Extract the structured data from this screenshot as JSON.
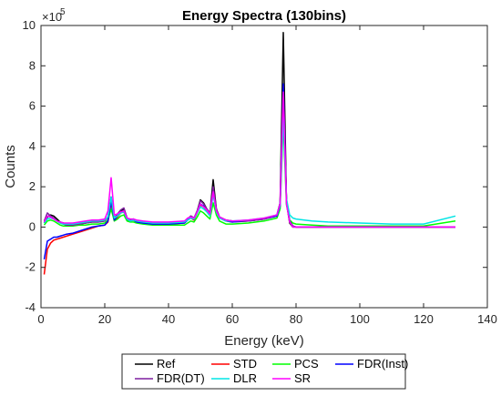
{
  "chart_data": {
    "type": "line",
    "title": "Energy Spectra (130bins)",
    "xlabel": "Energy (keV)",
    "ylabel": "Counts",
    "y_exponent_base": "×10",
    "y_exponent_power": "5",
    "xlim": [
      0,
      140
    ],
    "ylim": [
      -4,
      10
    ],
    "x_ticks": [
      0,
      20,
      40,
      60,
      80,
      100,
      120,
      140
    ],
    "y_ticks": [
      -4,
      -2,
      0,
      2,
      4,
      6,
      8,
      10
    ],
    "grid": false,
    "legend_position": "bottom-outside",
    "legend_columns": 4,
    "series": [
      {
        "name": "Ref",
        "color": "#000000",
        "x": [
          1,
          2,
          3,
          4,
          5,
          6,
          7,
          8,
          10,
          12,
          14,
          16,
          18,
          20,
          21,
          22,
          23,
          24,
          25,
          26,
          27,
          28,
          29,
          30,
          32,
          35,
          40,
          45,
          46,
          47,
          48,
          49,
          50,
          51,
          52,
          53,
          54,
          55,
          56,
          58,
          60,
          65,
          70,
          74,
          75,
          76,
          77,
          78,
          79,
          80,
          85,
          90,
          100,
          110,
          120,
          130
        ],
        "y": [
          0.2,
          0.5,
          0.6,
          0.55,
          0.4,
          0.25,
          0.2,
          0.15,
          0.1,
          0.15,
          0.2,
          0.25,
          0.25,
          0.3,
          0.5,
          1.4,
          0.45,
          0.6,
          0.8,
          0.9,
          0.45,
          0.35,
          0.4,
          0.3,
          0.25,
          0.2,
          0.2,
          0.25,
          0.4,
          0.55,
          0.45,
          0.8,
          1.35,
          1.2,
          0.9,
          0.7,
          2.35,
          0.9,
          0.5,
          0.35,
          0.3,
          0.3,
          0.4,
          0.6,
          1.2,
          9.65,
          1.2,
          0.2,
          0.0,
          0.0,
          0.0,
          0.0,
          0.0,
          0.0,
          0.0,
          0.0
        ]
      },
      {
        "name": "STD",
        "color": "#ff0000",
        "x": [
          1,
          2,
          3,
          4,
          5,
          6,
          7,
          8,
          10,
          12,
          14,
          16,
          18,
          20,
          21,
          22,
          23,
          24,
          25,
          26,
          27,
          28,
          29,
          30,
          32,
          35,
          40,
          45,
          46,
          47,
          48,
          49,
          50,
          51,
          52,
          53,
          54,
          55,
          56,
          58,
          60,
          65,
          70,
          74,
          75,
          76,
          77,
          78,
          79,
          80,
          85,
          90,
          100,
          110,
          120,
          130
        ],
        "y": [
          -2.35,
          -1.1,
          -0.8,
          -0.65,
          -0.6,
          -0.55,
          -0.5,
          -0.45,
          -0.35,
          -0.25,
          -0.15,
          -0.05,
          0.05,
          0.1,
          0.25,
          1.2,
          0.3,
          0.5,
          0.7,
          0.75,
          0.35,
          0.3,
          0.35,
          0.25,
          0.2,
          0.15,
          0.15,
          0.2,
          0.35,
          0.45,
          0.35,
          0.7,
          1.1,
          1.0,
          0.8,
          0.6,
          1.8,
          0.8,
          0.45,
          0.3,
          0.25,
          0.3,
          0.4,
          0.55,
          1.0,
          7.0,
          1.3,
          0.3,
          0.05,
          0.0,
          0.0,
          0.0,
          0.0,
          0.0,
          0.0,
          0.0
        ]
      },
      {
        "name": "PCS",
        "color": "#00ff00",
        "x": [
          1,
          2,
          3,
          4,
          5,
          6,
          7,
          8,
          10,
          12,
          14,
          16,
          18,
          20,
          21,
          22,
          23,
          24,
          25,
          26,
          27,
          28,
          29,
          30,
          32,
          35,
          40,
          45,
          46,
          47,
          48,
          49,
          50,
          51,
          52,
          53,
          54,
          55,
          56,
          58,
          60,
          65,
          70,
          74,
          75,
          76,
          77,
          78,
          79,
          80,
          85,
          90,
          100,
          110,
          120,
          130
        ],
        "y": [
          0.1,
          0.3,
          0.35,
          0.3,
          0.2,
          0.1,
          0.05,
          0.05,
          0.05,
          0.1,
          0.1,
          0.15,
          0.15,
          0.2,
          0.35,
          0.9,
          0.3,
          0.4,
          0.55,
          0.6,
          0.3,
          0.25,
          0.25,
          0.2,
          0.15,
          0.1,
          0.1,
          0.1,
          0.2,
          0.3,
          0.25,
          0.5,
          0.8,
          0.7,
          0.55,
          0.4,
          1.2,
          0.6,
          0.3,
          0.15,
          0.15,
          0.2,
          0.3,
          0.45,
          0.9,
          5.2,
          1.1,
          0.35,
          0.2,
          0.15,
          0.1,
          0.05,
          0.05,
          0.05,
          0.05,
          0.3
        ]
      },
      {
        "name": "FDR(Inst)",
        "color": "#0000ff",
        "x": [
          1,
          2,
          3,
          4,
          5,
          6,
          7,
          8,
          10,
          12,
          14,
          16,
          18,
          20,
          21,
          22,
          23,
          24,
          25,
          26,
          27,
          28,
          29,
          30,
          32,
          35,
          40,
          45,
          46,
          47,
          48,
          49,
          50,
          51,
          52,
          53,
          54,
          55,
          56,
          58,
          60,
          65,
          70,
          74,
          75,
          76,
          77,
          78,
          79,
          80,
          85,
          90,
          100,
          110,
          120,
          130
        ],
        "y": [
          -1.6,
          -0.7,
          -0.6,
          -0.5,
          -0.5,
          -0.45,
          -0.4,
          -0.35,
          -0.3,
          -0.2,
          -0.1,
          0.0,
          0.05,
          0.1,
          0.3,
          1.3,
          0.35,
          0.55,
          0.75,
          0.8,
          0.4,
          0.3,
          0.35,
          0.25,
          0.2,
          0.15,
          0.15,
          0.2,
          0.35,
          0.45,
          0.4,
          0.75,
          1.15,
          1.05,
          0.85,
          0.65,
          1.9,
          0.85,
          0.45,
          0.3,
          0.25,
          0.3,
          0.4,
          0.55,
          1.05,
          7.1,
          1.35,
          0.3,
          0.05,
          0.0,
          0.0,
          0.0,
          0.0,
          0.0,
          0.0,
          0.0
        ]
      },
      {
        "name": "FDR(DT)",
        "color": "#7f1f9f",
        "x": [
          1,
          2,
          3,
          4,
          5,
          6,
          7,
          8,
          10,
          12,
          14,
          16,
          18,
          20,
          21,
          22,
          23,
          24,
          25,
          26,
          27,
          28,
          29,
          30,
          32,
          35,
          40,
          45,
          46,
          47,
          48,
          49,
          50,
          51,
          52,
          53,
          54,
          55,
          56,
          58,
          60,
          65,
          70,
          74,
          75,
          76,
          77,
          78,
          79,
          80,
          85,
          90,
          100,
          110,
          120,
          130
        ],
        "y": [
          0.3,
          0.7,
          0.55,
          0.45,
          0.3,
          0.2,
          0.15,
          0.1,
          0.1,
          0.15,
          0.2,
          0.25,
          0.25,
          0.3,
          0.5,
          1.5,
          0.45,
          0.65,
          0.85,
          0.95,
          0.45,
          0.35,
          0.4,
          0.3,
          0.25,
          0.2,
          0.2,
          0.25,
          0.4,
          0.55,
          0.45,
          0.8,
          1.3,
          1.15,
          0.9,
          0.7,
          2.0,
          0.9,
          0.5,
          0.35,
          0.3,
          0.3,
          0.4,
          0.6,
          1.2,
          6.3,
          1.3,
          0.3,
          0.05,
          0.0,
          0.0,
          0.0,
          0.0,
          0.0,
          0.0,
          0.0
        ]
      },
      {
        "name": "DLR",
        "color": "#00e5e5",
        "x": [
          1,
          2,
          3,
          4,
          5,
          6,
          7,
          8,
          10,
          12,
          14,
          16,
          18,
          20,
          21,
          22,
          23,
          24,
          25,
          26,
          27,
          28,
          29,
          30,
          32,
          35,
          40,
          45,
          46,
          47,
          48,
          49,
          50,
          51,
          52,
          53,
          54,
          55,
          56,
          58,
          60,
          65,
          70,
          74,
          75,
          76,
          77,
          78,
          79,
          80,
          85,
          90,
          100,
          110,
          120,
          130
        ],
        "y": [
          0.2,
          0.4,
          0.45,
          0.4,
          0.3,
          0.2,
          0.15,
          0.15,
          0.15,
          0.2,
          0.25,
          0.3,
          0.3,
          0.35,
          0.5,
          1.5,
          0.45,
          0.55,
          0.7,
          0.75,
          0.4,
          0.3,
          0.35,
          0.3,
          0.25,
          0.2,
          0.2,
          0.25,
          0.35,
          0.45,
          0.4,
          0.7,
          1.0,
          0.9,
          0.75,
          0.55,
          1.6,
          0.75,
          0.45,
          0.3,
          0.3,
          0.35,
          0.45,
          0.6,
          1.1,
          5.5,
          1.4,
          0.6,
          0.45,
          0.4,
          0.3,
          0.25,
          0.2,
          0.15,
          0.15,
          0.55
        ]
      },
      {
        "name": "SR",
        "color": "#ff00ff",
        "x": [
          1,
          2,
          3,
          4,
          5,
          6,
          7,
          8,
          10,
          12,
          14,
          16,
          18,
          20,
          21,
          22,
          23,
          24,
          25,
          26,
          27,
          28,
          29,
          30,
          32,
          35,
          40,
          45,
          46,
          47,
          48,
          49,
          50,
          51,
          52,
          53,
          54,
          55,
          56,
          58,
          60,
          65,
          70,
          74,
          75,
          76,
          77,
          78,
          79,
          80,
          85,
          90,
          100,
          110,
          120,
          130
        ],
        "y": [
          0.25,
          0.55,
          0.5,
          0.4,
          0.3,
          0.25,
          0.2,
          0.2,
          0.2,
          0.25,
          0.3,
          0.35,
          0.35,
          0.4,
          0.8,
          2.45,
          0.6,
          0.65,
          0.75,
          0.8,
          0.45,
          0.4,
          0.4,
          0.35,
          0.3,
          0.25,
          0.25,
          0.3,
          0.45,
          0.5,
          0.45,
          0.75,
          1.15,
          1.0,
          0.85,
          0.65,
          1.75,
          0.8,
          0.5,
          0.35,
          0.3,
          0.35,
          0.45,
          0.6,
          1.15,
          6.7,
          1.15,
          0.25,
          0.0,
          0.0,
          0.0,
          0.0,
          0.0,
          0.0,
          0.0,
          0.0
        ]
      }
    ]
  }
}
